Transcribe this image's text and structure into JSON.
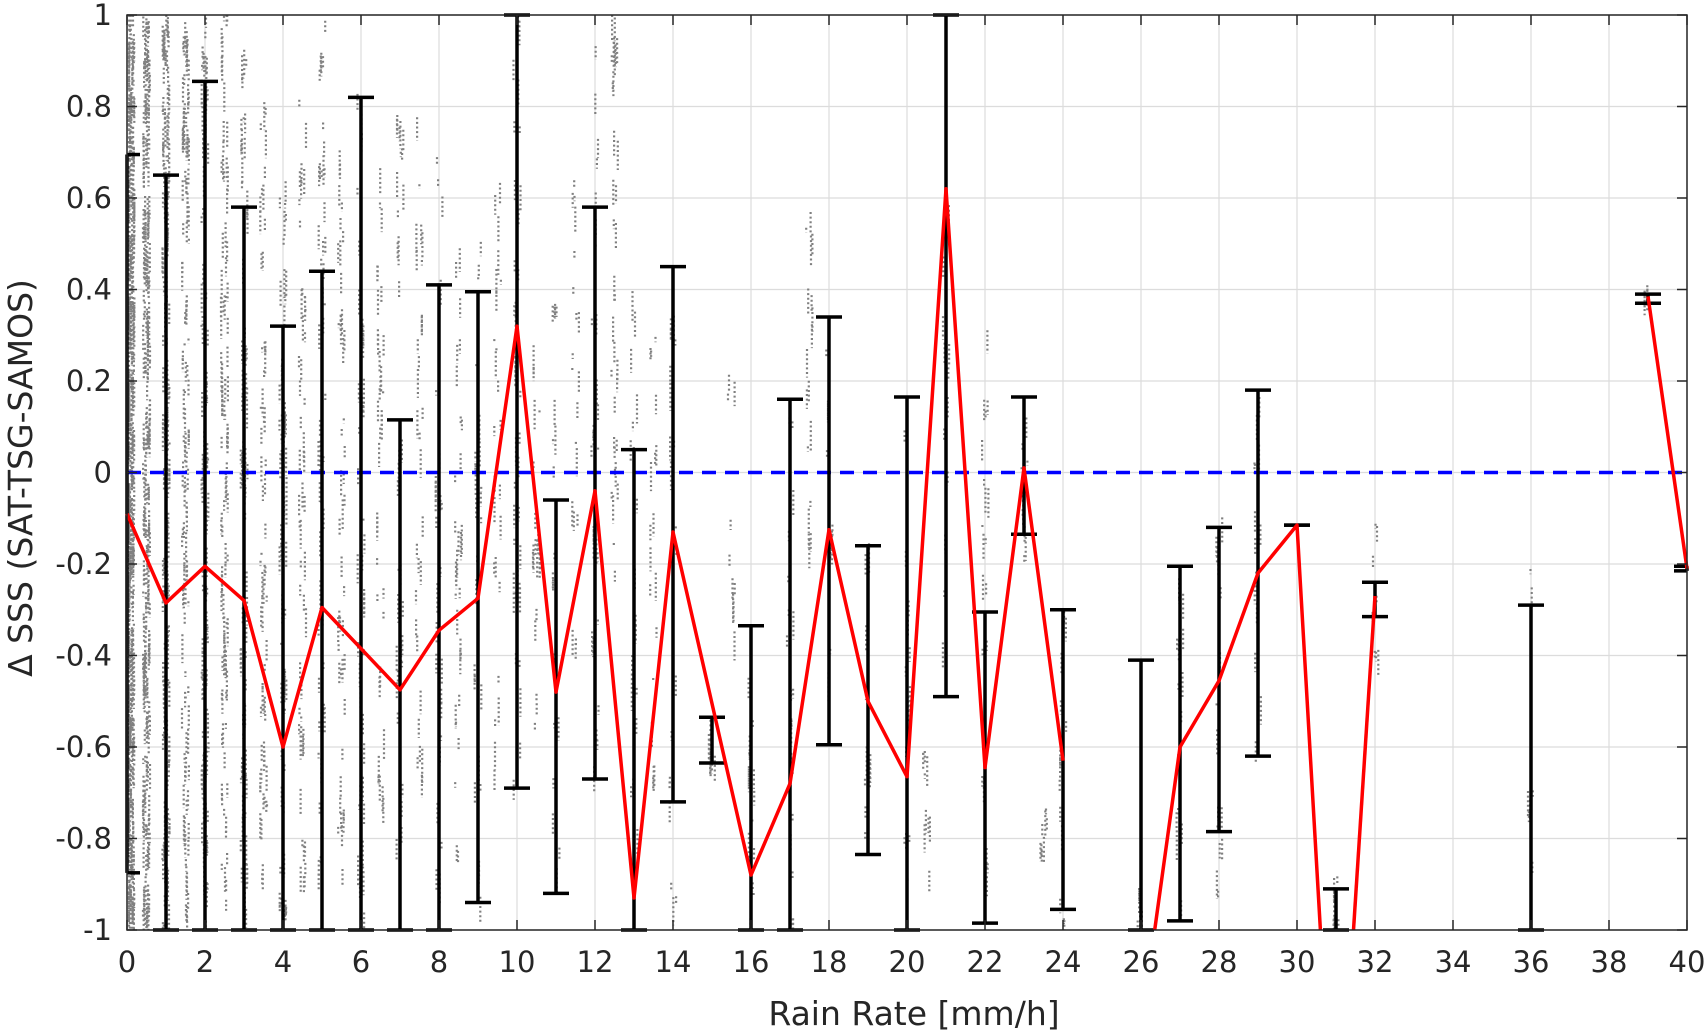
{
  "chart_data": {
    "type": "scatter",
    "title": "",
    "xlabel": "Rain Rate [mm/h]",
    "ylabel": "Δ SSS (SAT-TSG-SAMOS)",
    "xlim": [
      0,
      40
    ],
    "ylim": [
      -1,
      1
    ],
    "grid": true,
    "x_ticks": [
      "0",
      "2",
      "4",
      "6",
      "8",
      "10",
      "12",
      "14",
      "16",
      "18",
      "20",
      "22",
      "24",
      "26",
      "28",
      "30",
      "32",
      "34",
      "36",
      "38",
      "40"
    ],
    "y_ticks": [
      "1",
      "0.8",
      "0.6",
      "0.4",
      "0.2",
      "0",
      "-0.2",
      "-0.4",
      "-0.6",
      "-0.8",
      "-1"
    ],
    "zero_line": {
      "y": 0,
      "color": "#0000ff",
      "style": "dashed"
    },
    "scatter_color": "#808080",
    "errorbar_color": "#000000",
    "mean_color": "#ff0000",
    "scatter_columns": [
      {
        "x": 0.1,
        "ymin": -1.0,
        "ymax": 1.0,
        "n": 420
      },
      {
        "x": 0.5,
        "ymin": -1.0,
        "ymax": 1.0,
        "n": 260
      },
      {
        "x": 1.0,
        "ymin": -1.0,
        "ymax": 1.0,
        "n": 160
      },
      {
        "x": 1.5,
        "ymin": -1.0,
        "ymax": 1.0,
        "n": 120
      },
      {
        "x": 2.0,
        "ymin": -1.0,
        "ymax": 1.0,
        "n": 110
      },
      {
        "x": 2.5,
        "ymin": -0.95,
        "ymax": 1.0,
        "n": 90
      },
      {
        "x": 3.0,
        "ymin": -1.0,
        "ymax": 0.9,
        "n": 80
      },
      {
        "x": 3.5,
        "ymin": -0.9,
        "ymax": 0.8,
        "n": 60
      },
      {
        "x": 4.0,
        "ymin": -1.0,
        "ymax": 0.7,
        "n": 60
      },
      {
        "x": 4.5,
        "ymin": -0.95,
        "ymax": 0.85,
        "n": 50
      },
      {
        "x": 5.0,
        "ymin": -0.9,
        "ymax": 1.0,
        "n": 55
      },
      {
        "x": 5.5,
        "ymin": -0.9,
        "ymax": 0.7,
        "n": 45
      },
      {
        "x": 6.0,
        "ymin": -1.0,
        "ymax": 0.9,
        "n": 45
      },
      {
        "x": 6.5,
        "ymin": -0.8,
        "ymax": 0.7,
        "n": 35
      },
      {
        "x": 7.0,
        "ymin": -0.9,
        "ymax": 0.8,
        "n": 35
      },
      {
        "x": 7.5,
        "ymin": -0.7,
        "ymax": 0.85,
        "n": 30
      },
      {
        "x": 8.0,
        "ymin": -0.95,
        "ymax": 0.75,
        "n": 30
      },
      {
        "x": 8.5,
        "ymin": -0.9,
        "ymax": 0.6,
        "n": 30
      },
      {
        "x": 9.0,
        "ymin": -1.0,
        "ymax": 0.6,
        "n": 28
      },
      {
        "x": 9.5,
        "ymin": -0.8,
        "ymax": 0.7,
        "n": 25
      },
      {
        "x": 10.0,
        "ymin": -0.7,
        "ymax": 1.0,
        "n": 40
      },
      {
        "x": 10.5,
        "ymin": -0.6,
        "ymax": 0.3,
        "n": 20
      },
      {
        "x": 11.0,
        "ymin": -0.9,
        "ymax": 0.4,
        "n": 20
      },
      {
        "x": 11.5,
        "ymin": -0.5,
        "ymax": 0.65,
        "n": 20
      },
      {
        "x": 12.0,
        "ymin": -0.7,
        "ymax": 1.0,
        "n": 35
      },
      {
        "x": 12.5,
        "ymin": -0.3,
        "ymax": 1.0,
        "n": 35
      },
      {
        "x": 13.0,
        "ymin": -1.0,
        "ymax": 0.4,
        "n": 20
      },
      {
        "x": 13.5,
        "ymin": -0.7,
        "ymax": 0.3,
        "n": 18
      },
      {
        "x": 14.0,
        "ymin": -1.0,
        "ymax": 0.4,
        "n": 20
      },
      {
        "x": 15.0,
        "ymin": -0.65,
        "ymax": -0.55,
        "n": 8
      },
      {
        "x": 15.5,
        "ymin": -0.4,
        "ymax": 0.2,
        "n": 10
      },
      {
        "x": 16.0,
        "ymin": -1.0,
        "ymax": -0.35,
        "n": 15
      },
      {
        "x": 17.0,
        "ymin": -1.0,
        "ymax": 0.15,
        "n": 20
      },
      {
        "x": 17.5,
        "ymin": -0.2,
        "ymax": 0.6,
        "n": 18
      },
      {
        "x": 18.0,
        "ymin": -0.6,
        "ymax": 0.3,
        "n": 15
      },
      {
        "x": 19.0,
        "ymin": -0.9,
        "ymax": -0.15,
        "n": 12
      },
      {
        "x": 20.0,
        "ymin": -0.9,
        "ymax": 0.2,
        "n": 15
      },
      {
        "x": 20.5,
        "ymin": -0.9,
        "ymax": -0.6,
        "n": 10
      },
      {
        "x": 21.0,
        "ymin": -0.5,
        "ymax": 0.6,
        "n": 15
      },
      {
        "x": 22.0,
        "ymin": -1.0,
        "ymax": 0.3,
        "n": 20
      },
      {
        "x": 23.0,
        "ymin": -0.2,
        "ymax": 0.15,
        "n": 12
      },
      {
        "x": 23.5,
        "ymin": -0.85,
        "ymax": -0.7,
        "n": 8
      },
      {
        "x": 24.0,
        "ymin": -1.0,
        "ymax": 0.0,
        "n": 15
      },
      {
        "x": 26.0,
        "ymin": -1.0,
        "ymax": -0.9,
        "n": 8
      },
      {
        "x": 27.0,
        "ymin": -1.0,
        "ymax": -0.15,
        "n": 18
      },
      {
        "x": 28.0,
        "ymin": -0.95,
        "ymax": -0.1,
        "n": 18
      },
      {
        "x": 29.0,
        "ymin": -0.65,
        "ymax": 0.15,
        "n": 15
      },
      {
        "x": 31.0,
        "ymin": -1.0,
        "ymax": -0.85,
        "n": 10
      },
      {
        "x": 32.0,
        "ymin": -0.45,
        "ymax": -0.1,
        "n": 10
      },
      {
        "x": 36.0,
        "ymin": -0.95,
        "ymax": -0.2,
        "n": 8
      },
      {
        "x": 39.0,
        "ymin": 0.37,
        "ymax": 0.4,
        "n": 4
      }
    ],
    "series": [
      {
        "type": "errorbar",
        "points": [
          {
            "x": 0,
            "mean": -0.09,
            "low": -0.875,
            "high": 0.695
          },
          {
            "x": 1,
            "mean": -0.285,
            "low": -1.0,
            "high": 0.65
          },
          {
            "x": 2,
            "mean": -0.205,
            "low": -1.0,
            "high": 0.855
          },
          {
            "x": 3,
            "mean": -0.28,
            "low": -1.0,
            "high": 0.58
          },
          {
            "x": 4,
            "mean": -0.6,
            "low": -1.0,
            "high": 0.32
          },
          {
            "x": 5,
            "mean": -0.295,
            "low": -1.0,
            "high": 0.44
          },
          {
            "x": 6,
            "mean": -0.385,
            "low": -1.0,
            "high": 0.82
          },
          {
            "x": 7,
            "mean": -0.475,
            "low": -1.0,
            "high": 0.115
          },
          {
            "x": 8,
            "mean": -0.345,
            "low": -1.0,
            "high": 0.41
          },
          {
            "x": 9,
            "mean": -0.275,
            "low": -0.94,
            "high": 0.395
          },
          {
            "x": 10,
            "mean": 0.32,
            "low": -0.69,
            "high": 1.0
          },
          {
            "x": 11,
            "mean": -0.48,
            "low": -0.92,
            "high": -0.06
          },
          {
            "x": 12,
            "mean": -0.04,
            "low": -0.67,
            "high": 0.58
          },
          {
            "x": 13,
            "mean": -0.93,
            "low": -1.0,
            "high": 0.05
          },
          {
            "x": 14,
            "mean": -0.13,
            "low": -0.72,
            "high": 0.45
          },
          {
            "x": 15,
            "mean": null,
            "low": -0.635,
            "high": -0.535
          },
          {
            "x": 16,
            "mean": -0.88,
            "low": -1.0,
            "high": -0.335
          },
          {
            "x": 17,
            "mean": -0.68,
            "low": -1.0,
            "high": 0.16
          },
          {
            "x": 18,
            "mean": -0.125,
            "low": -0.595,
            "high": 0.34
          },
          {
            "x": 19,
            "mean": -0.5,
            "low": -0.835,
            "high": -0.16
          },
          {
            "x": 20,
            "mean": -0.665,
            "low": -1.0,
            "high": 0.165
          },
          {
            "x": 21,
            "mean": 0.62,
            "low": -0.49,
            "high": 1.0
          },
          {
            "x": 22,
            "mean": -0.645,
            "low": -0.985,
            "high": -0.305
          },
          {
            "x": 23,
            "mean": 0.01,
            "low": -0.135,
            "high": 0.165
          },
          {
            "x": 24,
            "mean": -0.63,
            "low": -0.955,
            "high": -0.3
          },
          {
            "x": 26,
            "mean": null,
            "low": -1.0,
            "high": -0.41
          },
          {
            "x": 27,
            "mean": -0.6,
            "low": -0.98,
            "high": -0.205
          },
          {
            "x": 28,
            "mean": -0.455,
            "low": -0.785,
            "high": -0.12
          },
          {
            "x": 29,
            "mean": -0.22,
            "low": -0.62,
            "high": 0.18
          },
          {
            "x": 30,
            "mean": -0.115,
            "low": -0.115,
            "high": -0.115
          },
          {
            "x": 31,
            "mean": null,
            "low": -1.0,
            "high": -0.91
          },
          {
            "x": 32,
            "mean": -0.27,
            "low": -0.315,
            "high": -0.24
          },
          {
            "x": 36,
            "mean": null,
            "low": -1.0,
            "high": -0.29
          },
          {
            "x": 39,
            "mean": 0.385,
            "low": 0.37,
            "high": 0.39
          },
          {
            "x": 40,
            "mean": -0.21,
            "low": -0.215,
            "high": -0.205
          }
        ]
      },
      {
        "type": "line",
        "segments": [
          [
            [
              0,
              -0.09
            ],
            [
              1,
              -0.285
            ],
            [
              2,
              -0.205
            ],
            [
              3,
              -0.28
            ],
            [
              4,
              -0.6
            ],
            [
              5,
              -0.295
            ],
            [
              6,
              -0.385
            ],
            [
              7,
              -0.475
            ],
            [
              8,
              -0.345
            ],
            [
              9,
              -0.275
            ],
            [
              10,
              0.32
            ],
            [
              11,
              -0.48
            ],
            [
              12,
              -0.04
            ],
            [
              13,
              -0.93
            ],
            [
              14,
              -0.13
            ],
            [
              16,
              -0.88
            ],
            [
              17,
              -0.68
            ],
            [
              18,
              -0.125
            ],
            [
              19,
              -0.5
            ],
            [
              20,
              -0.665
            ],
            [
              21,
              0.62
            ],
            [
              22,
              -0.645
            ],
            [
              23,
              0.01
            ],
            [
              24,
              -0.63
            ]
          ],
          [
            [
              26.35,
              -1.0
            ],
            [
              27,
              -0.6
            ],
            [
              28,
              -0.455
            ],
            [
              29,
              -0.22
            ],
            [
              30,
              -0.115
            ],
            [
              30.6,
              -1.0
            ]
          ],
          [
            [
              31.45,
              -1.0
            ],
            [
              32,
              -0.27
            ]
          ],
          [
            [
              39,
              0.385
            ],
            [
              40,
              -0.21
            ]
          ]
        ]
      }
    ]
  }
}
